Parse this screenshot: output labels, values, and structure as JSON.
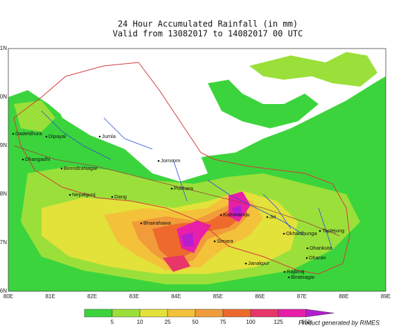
{
  "header": {
    "title": "24 Hour Accumulated  Rainfall  (in mm)",
    "subtitle": "Valid from 13082017 to 14082017 00 UTC"
  },
  "map": {
    "lat_labels": [
      "31N",
      "30N",
      "29N",
      "28N",
      "27N",
      "26N"
    ],
    "lon_labels": [
      "80E",
      "81E",
      "82E",
      "83E",
      "84E",
      "85E",
      "86E",
      "87E",
      "88E",
      "89E"
    ],
    "cities": [
      "Dadeldhura",
      "Dipayal",
      "Jumla",
      "Dhangadhi",
      "BirendraNagar",
      "Jomsom",
      "Nepalgunj",
      "Dang",
      "Pokhara",
      "Kathmandu",
      "Bhairahawa",
      "Jiri",
      "Simara",
      "Okhaldhunga",
      "Taplejung",
      "Dhankuta",
      "Dharan",
      "Janakpur",
      "Rajbiraj",
      "Biratnagar"
    ]
  },
  "colorbar": {
    "levels": [
      5,
      10,
      25,
      50,
      75,
      100,
      125,
      150
    ],
    "colors": [
      "#3cd43c",
      "#9be03a",
      "#e2e23a",
      "#f4c23a",
      "#f29b3a",
      "#ee6a2c",
      "#e8366a",
      "#e81fa8",
      "#b41ed0"
    ]
  },
  "footer": {
    "credit": "Product generated by RIMES"
  }
}
